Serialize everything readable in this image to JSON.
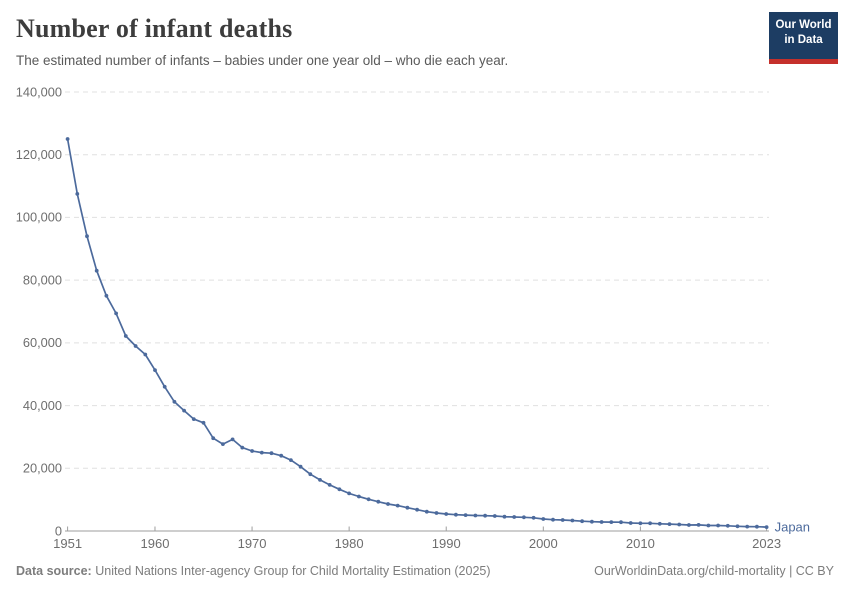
{
  "header": {
    "title": "Number of infant deaths",
    "subtitle": "The estimated number of infants – babies under one year old – who die each year."
  },
  "logo": {
    "line1": "Our World",
    "line2": "in Data",
    "bg_color": "#1d3d63",
    "accent_color": "#c5302b"
  },
  "chart_data": {
    "type": "line",
    "title": "Number of infant deaths",
    "xlabel": "",
    "ylabel": "",
    "xlim": [
      1951,
      2023
    ],
    "ylim": [
      0,
      140000
    ],
    "grid": "horizontal-dashed",
    "x_ticks": [
      1951,
      1960,
      1970,
      1980,
      1990,
      2000,
      2010,
      2023
    ],
    "y_ticks": [
      0,
      20000,
      40000,
      60000,
      80000,
      100000,
      120000,
      140000
    ],
    "series": [
      {
        "name": "Japan",
        "color": "#4c6a9c",
        "x": [
          1951,
          1952,
          1953,
          1954,
          1955,
          1956,
          1957,
          1958,
          1959,
          1960,
          1961,
          1962,
          1963,
          1964,
          1965,
          1966,
          1967,
          1968,
          1969,
          1970,
          1971,
          1972,
          1973,
          1974,
          1975,
          1976,
          1977,
          1978,
          1979,
          1980,
          1981,
          1982,
          1983,
          1984,
          1985,
          1986,
          1987,
          1988,
          1989,
          1990,
          1991,
          1992,
          1993,
          1994,
          1995,
          1996,
          1997,
          1998,
          1999,
          2000,
          2001,
          2002,
          2003,
          2004,
          2005,
          2006,
          2007,
          2008,
          2009,
          2010,
          2011,
          2012,
          2013,
          2014,
          2015,
          2016,
          2017,
          2018,
          2019,
          2020,
          2021,
          2022,
          2023
        ],
        "values": [
          125000,
          107500,
          94000,
          83000,
          75000,
          69400,
          62200,
          59000,
          56300,
          51300,
          46000,
          41200,
          38400,
          35700,
          34500,
          29600,
          27700,
          29200,
          26600,
          25500,
          25000,
          24800,
          24000,
          22600,
          20500,
          18100,
          16300,
          14700,
          13300,
          12000,
          11000,
          10100,
          9350,
          8600,
          8100,
          7440,
          6800,
          6160,
          5740,
          5420,
          5210,
          5060,
          4940,
          4890,
          4780,
          4570,
          4470,
          4360,
          4200,
          3830,
          3600,
          3500,
          3360,
          3120,
          2960,
          2860,
          2830,
          2800,
          2560,
          2450,
          2460,
          2300,
          2190,
          2080,
          1920,
          1930,
          1760,
          1750,
          1650,
          1510,
          1400,
          1360,
          1240
        ]
      }
    ],
    "end_label": "Japan",
    "colors": {
      "line": "#4c6a9c",
      "gridline": "#e0e0e0",
      "axis": "#9e9e9e",
      "tick_label": "#6e6e6e"
    }
  },
  "footer": {
    "source_label": "Data source:",
    "source_text": "United Nations Inter-agency Group for Child Mortality Estimation (2025)",
    "license_text": "OurWorldinData.org/child-mortality | CC BY"
  }
}
